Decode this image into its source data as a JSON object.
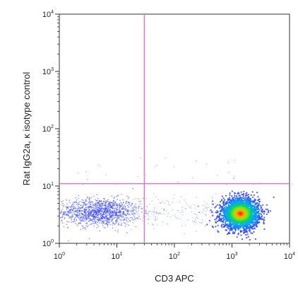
{
  "chart_data": {
    "type": "scatter",
    "plot_style": "flow-cytometry density dot plot",
    "xlabel": "CD3 APC",
    "ylabel": "Rat IgG2a, κ isotype control",
    "x_scale": "log",
    "y_scale": "log",
    "xlim": [
      1,
      10000
    ],
    "ylim": [
      1,
      10000
    ],
    "x_ticks": [
      {
        "base": "10",
        "exp": "0"
      },
      {
        "base": "10",
        "exp": "1"
      },
      {
        "base": "10",
        "exp": "2"
      },
      {
        "base": "10",
        "exp": "3"
      },
      {
        "base": "10",
        "exp": "4"
      }
    ],
    "y_ticks": [
      {
        "base": "10",
        "exp": "0"
      },
      {
        "base": "10",
        "exp": "1"
      },
      {
        "base": "10",
        "exp": "2"
      },
      {
        "base": "10",
        "exp": "3"
      },
      {
        "base": "10",
        "exp": "4"
      }
    ],
    "gates": {
      "x": 30,
      "y": 11
    },
    "populations": [
      {
        "center_x": 5,
        "center_y": 3.5,
        "spread_x_decades": 0.35,
        "spread_y_decades": 0.12,
        "density": "low"
      },
      {
        "center_x": 1400,
        "center_y": 3.3,
        "spread_x_decades": 0.16,
        "spread_y_decades": 0.13,
        "density": "high"
      }
    ],
    "colors": {
      "gate_line": "#e070e0",
      "axis": "#333333",
      "low_density": "#3040ff",
      "high_density": "#ff2000"
    }
  }
}
